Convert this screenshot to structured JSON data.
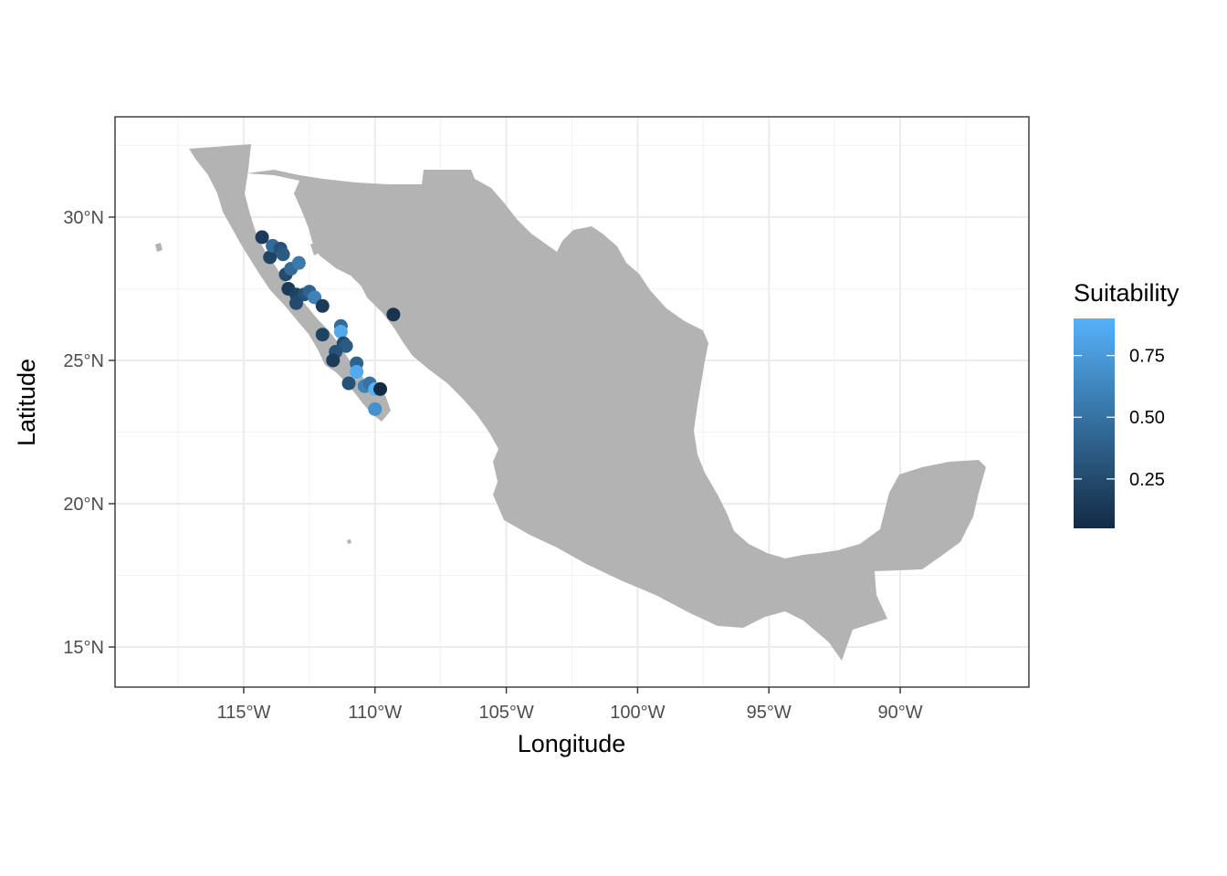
{
  "chart_data": {
    "type": "scatter",
    "x_label": "Longitude",
    "y_label": "Latitude",
    "x_range": [
      -119.9,
      -85.1
    ],
    "y_range": [
      13.6,
      33.5
    ],
    "grid": true,
    "x_ticks": [
      {
        "value": -115,
        "label": "115°W"
      },
      {
        "value": -110,
        "label": "110°W"
      },
      {
        "value": -105,
        "label": "105°W"
      },
      {
        "value": -100,
        "label": "100°W"
      },
      {
        "value": -95,
        "label": "95°W"
      },
      {
        "value": -90,
        "label": "90°W"
      }
    ],
    "y_ticks": [
      {
        "value": 15,
        "label": "15°N"
      },
      {
        "value": 20,
        "label": "20°N"
      },
      {
        "value": 25,
        "label": "25°N"
      },
      {
        "value": 30,
        "label": "30°N"
      }
    ],
    "land_color": "#b3b3b3",
    "legend": {
      "title": "Suitability",
      "placement": "right",
      "range": [
        0.05,
        0.9
      ],
      "low_color": "#132b43",
      "high_color": "#56b1f7",
      "ticks": [
        {
          "value": 0.25,
          "label": "0.25"
        },
        {
          "value": 0.5,
          "label": "0.50"
        },
        {
          "value": 0.75,
          "label": "0.75"
        }
      ]
    },
    "points": [
      {
        "lon": -114.3,
        "lat": 29.3,
        "s": 0.15
      },
      {
        "lon": -114.0,
        "lat": 28.6,
        "s": 0.2
      },
      {
        "lon": -113.9,
        "lat": 29.0,
        "s": 0.45
      },
      {
        "lon": -113.6,
        "lat": 28.9,
        "s": 0.3
      },
      {
        "lon": -113.5,
        "lat": 28.7,
        "s": 0.35
      },
      {
        "lon": -113.4,
        "lat": 28.0,
        "s": 0.25
      },
      {
        "lon": -113.2,
        "lat": 28.2,
        "s": 0.45
      },
      {
        "lon": -112.9,
        "lat": 28.4,
        "s": 0.55
      },
      {
        "lon": -113.3,
        "lat": 27.5,
        "s": 0.15
      },
      {
        "lon": -113.0,
        "lat": 27.3,
        "s": 0.2
      },
      {
        "lon": -112.7,
        "lat": 27.3,
        "s": 0.3
      },
      {
        "lon": -113.0,
        "lat": 27.0,
        "s": 0.25
      },
      {
        "lon": -112.5,
        "lat": 27.4,
        "s": 0.4
      },
      {
        "lon": -112.3,
        "lat": 27.2,
        "s": 0.6
      },
      {
        "lon": -112.0,
        "lat": 26.9,
        "s": 0.15
      },
      {
        "lon": -111.3,
        "lat": 26.2,
        "s": 0.45
      },
      {
        "lon": -111.3,
        "lat": 26.0,
        "s": 0.85
      },
      {
        "lon": -112.0,
        "lat": 25.9,
        "s": 0.2
      },
      {
        "lon": -111.2,
        "lat": 25.6,
        "s": 0.25
      },
      {
        "lon": -111.1,
        "lat": 25.5,
        "s": 0.35
      },
      {
        "lon": -111.5,
        "lat": 25.3,
        "s": 0.3
      },
      {
        "lon": -111.6,
        "lat": 25.0,
        "s": 0.15
      },
      {
        "lon": -110.7,
        "lat": 24.9,
        "s": 0.4
      },
      {
        "lon": -110.7,
        "lat": 24.6,
        "s": 0.85
      },
      {
        "lon": -111.0,
        "lat": 24.2,
        "s": 0.3
      },
      {
        "lon": -110.4,
        "lat": 24.1,
        "s": 0.6
      },
      {
        "lon": -110.2,
        "lat": 24.2,
        "s": 0.5
      },
      {
        "lon": -110.0,
        "lat": 24.0,
        "s": 0.9
      },
      {
        "lon": -109.8,
        "lat": 24.0,
        "s": 0.05
      },
      {
        "lon": -110.0,
        "lat": 23.3,
        "s": 0.7
      },
      {
        "lon": -109.3,
        "lat": 26.6,
        "s": 0.1
      }
    ]
  }
}
